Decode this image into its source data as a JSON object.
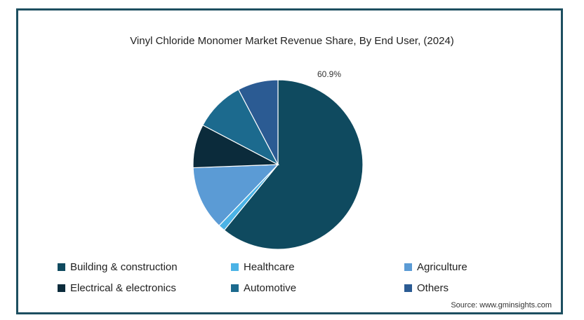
{
  "source": "Source: www.gminsights.com",
  "chart_data": {
    "type": "pie",
    "title": "Vinyl Chloride Monomer Market Revenue Share, By End User, (2024)",
    "slices": [
      {
        "label": "Building & construction",
        "value": 60.9,
        "color": "#0f4a5f",
        "data_label": "60.9%"
      },
      {
        "label": "Healthcare",
        "value": 1.3,
        "color": "#4bb3e6",
        "data_label": ""
      },
      {
        "label": "Agriculture",
        "value": 12.2,
        "color": "#5b9bd5",
        "data_label": ""
      },
      {
        "label": "Electrical & electronics",
        "value": 8.3,
        "color": "#0b2b3b",
        "data_label": ""
      },
      {
        "label": "Automotive",
        "value": 9.6,
        "color": "#1c6a8e",
        "data_label": ""
      },
      {
        "label": "Others",
        "value": 7.7,
        "color": "#2b5b93",
        "data_label": ""
      }
    ],
    "legend_position": "bottom"
  }
}
